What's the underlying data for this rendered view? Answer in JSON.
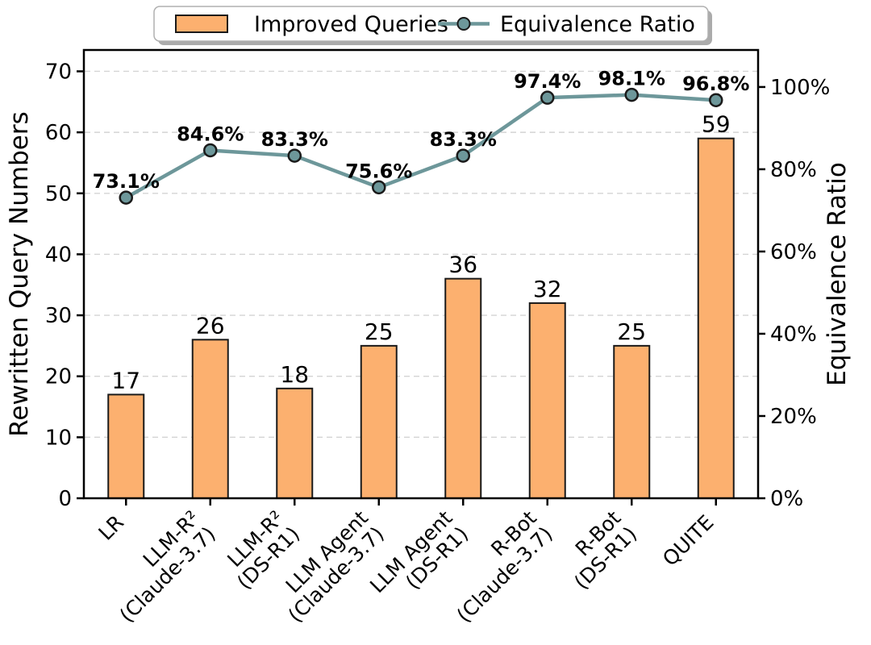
{
  "figure": {
    "background": "#ffffff"
  },
  "chart_data": {
    "type": "bar+line (dual axis)",
    "categories": [
      "LR",
      "LLM-R²\n(Claude-3.7)",
      "LLM-R²\n(DS-R1)",
      "LLM Agent\n(Claude-3.7)",
      "LLM Agent\n(DS-R1)",
      "R-Bot\n(Claude-3.7)",
      "R-Bot\n(DS-R1)",
      "QUITE"
    ],
    "series": [
      {
        "name": "Improved Queries",
        "type": "bar",
        "axis": "left",
        "values": [
          17,
          26,
          18,
          25,
          36,
          32,
          25,
          59
        ],
        "value_labels": [
          "17",
          "26",
          "18",
          "25",
          "36",
          "32",
          "25",
          "59"
        ],
        "fill_color": "#FCB06F",
        "edge_color": "#1a1a1a"
      },
      {
        "name": "Equivalence Ratio",
        "type": "line",
        "axis": "right",
        "values": [
          73.1,
          84.6,
          83.3,
          75.6,
          83.3,
          97.4,
          98.1,
          96.8
        ],
        "point_labels": [
          "73.1%",
          "84.6%",
          "83.3%",
          "75.6%",
          "83.3%",
          "97.4%",
          "98.1%",
          "96.8%"
        ],
        "line_color": "#6D979A",
        "marker_edge_color": "#1a1a1a"
      }
    ],
    "left_axis": {
      "label": "Rewritten Query Numbers",
      "tick_values": [
        0,
        10,
        20,
        30,
        40,
        50,
        60,
        70
      ],
      "tick_labels": [
        "0",
        "10",
        "20",
        "30",
        "40",
        "50",
        "60",
        "70"
      ],
      "range": [
        0,
        73.5
      ]
    },
    "right_axis": {
      "label": "Equivalence Ratio",
      "tick_values": [
        0,
        20,
        40,
        60,
        80,
        100
      ],
      "tick_labels": [
        "0%",
        "20%",
        "40%",
        "60%",
        "80%",
        "100%"
      ],
      "range": [
        0,
        109
      ]
    },
    "grid": {
      "show": true,
      "style": "dashed",
      "color": "#d4d4d4",
      "follows": "left-axis ticks"
    },
    "legend": {
      "position": "top center",
      "entries": [
        "Improved Queries",
        "Equivalence Ratio"
      ]
    }
  }
}
